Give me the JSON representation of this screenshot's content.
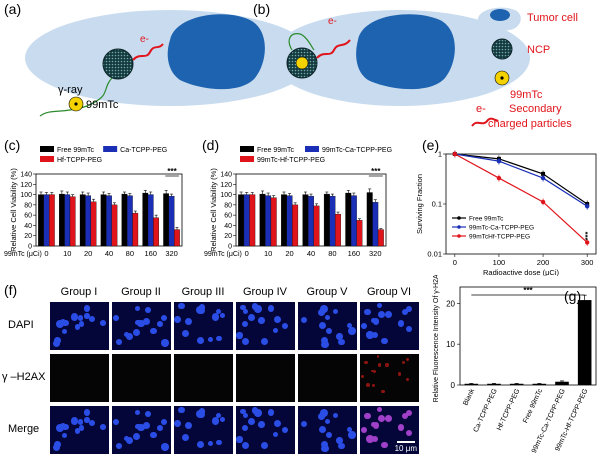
{
  "panels": {
    "a": {
      "label": "(a)",
      "ray": "γ-ray",
      "isotope": "99mTc"
    },
    "b": {
      "label": "(b)"
    },
    "legend": {
      "tumor_cell": "Tumor cell",
      "ncp": "NCP",
      "isotope": "99mTc",
      "secondary": "Secondary",
      "charged": "charged particles",
      "electron": "e-"
    },
    "c": {
      "label": "(c)"
    },
    "d": {
      "label": "(d)"
    },
    "e": {
      "label": "(e)"
    },
    "f": {
      "label": "(f)",
      "groups": [
        "Group I",
        "Group II",
        "Group III",
        "Group IV",
        "Group V",
        "Group VI"
      ],
      "rows": [
        "DAPI",
        "γ –H2AX",
        "Merge"
      ],
      "scale_bar": "10 μm"
    },
    "g": {
      "label": "(g)"
    }
  },
  "colors": {
    "tumor": "#1e63b0",
    "halo": "#c9dcef",
    "free": "#000000",
    "ca": "#1a2fb5",
    "hf": "#e0141b",
    "red_text": "#e0141b"
  },
  "chart_data": [
    {
      "id": "c",
      "type": "bar",
      "categories": [
        "0",
        "10",
        "20",
        "40",
        "80",
        "160",
        "320"
      ],
      "xlabel": "99mTc (μCi)",
      "ylabel": "Relative Cell Viability (%)",
      "ylim": [
        0,
        140
      ],
      "yticks": [
        0,
        20,
        40,
        60,
        80,
        100,
        120,
        140
      ],
      "significance": "***",
      "series": [
        {
          "name": "Free 99mTc",
          "color": "#000000",
          "values": [
            100,
            101,
            100,
            100,
            101,
            103,
            102
          ],
          "errors": [
            5,
            6,
            5,
            5,
            4,
            5,
            6
          ]
        },
        {
          "name": "Ca-TCPP-PEG",
          "color": "#1a2fb5",
          "values": [
            100,
            100,
            98,
            98,
            98,
            100,
            97
          ],
          "errors": [
            4,
            5,
            5,
            4,
            4,
            5,
            4
          ]
        },
        {
          "name": "Hf-TCPP-PEG",
          "color": "#e0141b",
          "values": [
            100,
            96,
            86,
            80,
            64,
            55,
            32
          ],
          "errors": [
            4,
            4,
            5,
            4,
            4,
            5,
            4
          ]
        }
      ]
    },
    {
      "id": "d",
      "type": "bar",
      "categories": [
        "0",
        "10",
        "20",
        "40",
        "80",
        "160",
        "320"
      ],
      "xlabel": "99mTc (μCi)",
      "ylabel": "Relative Cell Viability (%)",
      "ylim": [
        0,
        140
      ],
      "yticks": [
        0,
        20,
        40,
        60,
        80,
        100,
        120,
        140
      ],
      "significance": "***",
      "series": [
        {
          "name": "Free 99mTc",
          "color": "#000000",
          "values": [
            100,
            101,
            100,
            100,
            101,
            103,
            104
          ],
          "errors": [
            5,
            6,
            5,
            5,
            4,
            5,
            7
          ]
        },
        {
          "name": "99mTc-Ca-TCPP-PEG",
          "color": "#1a2fb5",
          "values": [
            100,
            98,
            98,
            97,
            97,
            98,
            85
          ],
          "errors": [
            4,
            5,
            4,
            4,
            4,
            5,
            5
          ]
        },
        {
          "name": "99mTc-Hf-TCPP-PEG",
          "color": "#e0141b",
          "values": [
            100,
            94,
            80,
            78,
            62,
            50,
            32
          ],
          "errors": [
            4,
            4,
            4,
            4,
            4,
            3,
            2
          ]
        }
      ]
    },
    {
      "id": "e",
      "type": "line",
      "xlabel": "Radioactive dose (μCi)",
      "ylabel": "Surviving Fraction",
      "scale_y": "log",
      "ylim": [
        0.01,
        1
      ],
      "xlim": [
        -20,
        320
      ],
      "xticks": [
        0,
        100,
        200,
        300
      ],
      "yticks": [
        0.01,
        0.1,
        1
      ],
      "ytick_labels": [
        "0.01",
        "0.1",
        "1"
      ],
      "x": [
        0,
        100,
        200,
        300
      ],
      "significance": "***",
      "series": [
        {
          "name": "Free 99mTc",
          "color": "#000000",
          "values": [
            1.0,
            0.8,
            0.4,
            0.1
          ]
        },
        {
          "name": "99mTc-Ca-TCPP-PEG",
          "color": "#1a2fb5",
          "values": [
            1.0,
            0.72,
            0.33,
            0.09
          ]
        },
        {
          "name": "99mTcHf-TCPP-PEG",
          "color": "#e0141b",
          "values": [
            1.0,
            0.33,
            0.11,
            0.017
          ]
        }
      ]
    },
    {
      "id": "g",
      "type": "bar",
      "categories": [
        "Blank",
        "Ca-TCPP-PEG",
        "Hf-TCPP-PEG",
        "Free 99mTc",
        "99mTc-Ca-TCPP-PEG",
        "99mTc-Hf-TCPP-PEG"
      ],
      "ylabel": "Relative Fluorescence Intensity Of γ-H2AX",
      "ylim": [
        0,
        24
      ],
      "yticks": [
        0,
        10,
        20
      ],
      "significance": "***",
      "values": [
        0.3,
        0.3,
        0.3,
        0.3,
        0.8,
        20.8
      ],
      "errors": [
        0.1,
        0.1,
        0.1,
        0.1,
        0.2,
        1.2
      ]
    }
  ]
}
